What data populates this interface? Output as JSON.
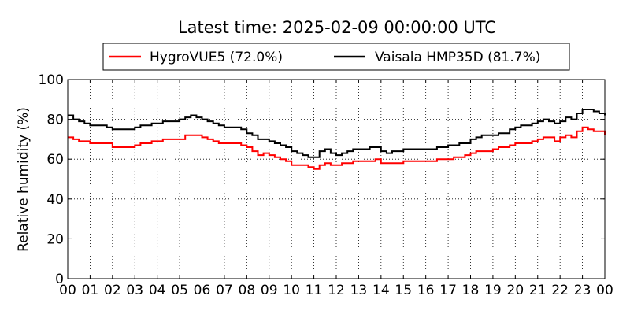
{
  "chart_data": {
    "type": "line",
    "title": "Latest time: 2025-02-09 00:00:00 UTC",
    "xlabel": "",
    "ylabel": "Relative humidity (%)",
    "xlim": [
      0,
      24
    ],
    "ylim": [
      0,
      100
    ],
    "x_ticks": [
      "00",
      "01",
      "02",
      "03",
      "04",
      "05",
      "06",
      "07",
      "08",
      "09",
      "10",
      "11",
      "12",
      "13",
      "14",
      "15",
      "16",
      "17",
      "18",
      "19",
      "20",
      "21",
      "22",
      "23",
      "00"
    ],
    "y_ticks": [
      0,
      20,
      40,
      60,
      80,
      100
    ],
    "grid": true,
    "legend_position": "top-center",
    "series": [
      {
        "name": "HygroVUE5 (72.0%)",
        "color": "#ff0000",
        "points": [
          [
            0.0,
            71
          ],
          [
            0.25,
            70
          ],
          [
            0.5,
            69
          ],
          [
            0.75,
            69
          ],
          [
            1.0,
            68
          ],
          [
            1.25,
            68
          ],
          [
            1.5,
            68
          ],
          [
            1.75,
            68
          ],
          [
            2.0,
            66
          ],
          [
            2.25,
            66
          ],
          [
            2.5,
            66
          ],
          [
            2.75,
            66
          ],
          [
            3.0,
            67
          ],
          [
            3.25,
            68
          ],
          [
            3.5,
            68
          ],
          [
            3.75,
            69
          ],
          [
            4.0,
            69
          ],
          [
            4.25,
            70
          ],
          [
            4.5,
            70
          ],
          [
            4.75,
            70
          ],
          [
            5.0,
            70
          ],
          [
            5.25,
            72
          ],
          [
            5.5,
            72
          ],
          [
            5.75,
            72
          ],
          [
            6.0,
            71
          ],
          [
            6.25,
            70
          ],
          [
            6.5,
            69
          ],
          [
            6.75,
            68
          ],
          [
            7.0,
            68
          ],
          [
            7.25,
            68
          ],
          [
            7.5,
            68
          ],
          [
            7.75,
            67
          ],
          [
            8.0,
            66
          ],
          [
            8.25,
            64
          ],
          [
            8.5,
            62
          ],
          [
            8.75,
            63
          ],
          [
            9.0,
            62
          ],
          [
            9.25,
            61
          ],
          [
            9.5,
            60
          ],
          [
            9.75,
            59
          ],
          [
            10.0,
            57
          ],
          [
            10.25,
            57
          ],
          [
            10.5,
            57
          ],
          [
            10.75,
            56
          ],
          [
            11.0,
            55
          ],
          [
            11.25,
            57
          ],
          [
            11.5,
            58
          ],
          [
            11.75,
            57
          ],
          [
            12.0,
            57
          ],
          [
            12.25,
            58
          ],
          [
            12.5,
            58
          ],
          [
            12.75,
            59
          ],
          [
            13.0,
            59
          ],
          [
            13.25,
            59
          ],
          [
            13.5,
            59
          ],
          [
            13.75,
            60
          ],
          [
            14.0,
            58
          ],
          [
            14.25,
            58
          ],
          [
            14.5,
            58
          ],
          [
            14.75,
            58
          ],
          [
            15.0,
            59
          ],
          [
            15.25,
            59
          ],
          [
            15.5,
            59
          ],
          [
            15.75,
            59
          ],
          [
            16.0,
            59
          ],
          [
            16.25,
            59
          ],
          [
            16.5,
            60
          ],
          [
            16.75,
            60
          ],
          [
            17.0,
            60
          ],
          [
            17.25,
            61
          ],
          [
            17.5,
            61
          ],
          [
            17.75,
            62
          ],
          [
            18.0,
            63
          ],
          [
            18.25,
            64
          ],
          [
            18.5,
            64
          ],
          [
            18.75,
            64
          ],
          [
            19.0,
            65
          ],
          [
            19.25,
            66
          ],
          [
            19.5,
            66
          ],
          [
            19.75,
            67
          ],
          [
            20.0,
            68
          ],
          [
            20.25,
            68
          ],
          [
            20.5,
            68
          ],
          [
            20.75,
            69
          ],
          [
            21.0,
            70
          ],
          [
            21.25,
            71
          ],
          [
            21.5,
            71
          ],
          [
            21.75,
            69
          ],
          [
            22.0,
            71
          ],
          [
            22.25,
            72
          ],
          [
            22.5,
            71
          ],
          [
            22.75,
            74
          ],
          [
            23.0,
            76
          ],
          [
            23.25,
            75
          ],
          [
            23.5,
            74
          ],
          [
            23.75,
            74
          ],
          [
            24.0,
            72
          ]
        ]
      },
      {
        "name": "Vaisala HMP35D (81.7%)",
        "color": "#000000",
        "points": [
          [
            0.0,
            82
          ],
          [
            0.25,
            80
          ],
          [
            0.5,
            79
          ],
          [
            0.75,
            78
          ],
          [
            1.0,
            77
          ],
          [
            1.25,
            77
          ],
          [
            1.5,
            77
          ],
          [
            1.75,
            76
          ],
          [
            2.0,
            75
          ],
          [
            2.25,
            75
          ],
          [
            2.5,
            75
          ],
          [
            2.75,
            75
          ],
          [
            3.0,
            76
          ],
          [
            3.25,
            77
          ],
          [
            3.5,
            77
          ],
          [
            3.75,
            78
          ],
          [
            4.0,
            78
          ],
          [
            4.25,
            79
          ],
          [
            4.5,
            79
          ],
          [
            4.75,
            79
          ],
          [
            5.0,
            80
          ],
          [
            5.25,
            81
          ],
          [
            5.5,
            82
          ],
          [
            5.75,
            81
          ],
          [
            6.0,
            80
          ],
          [
            6.25,
            79
          ],
          [
            6.5,
            78
          ],
          [
            6.75,
            77
          ],
          [
            7.0,
            76
          ],
          [
            7.25,
            76
          ],
          [
            7.5,
            76
          ],
          [
            7.75,
            75
          ],
          [
            8.0,
            73
          ],
          [
            8.25,
            72
          ],
          [
            8.5,
            70
          ],
          [
            8.75,
            70
          ],
          [
            9.0,
            69
          ],
          [
            9.25,
            68
          ],
          [
            9.5,
            67
          ],
          [
            9.75,
            66
          ],
          [
            10.0,
            64
          ],
          [
            10.25,
            63
          ],
          [
            10.5,
            62
          ],
          [
            10.75,
            61
          ],
          [
            11.0,
            61
          ],
          [
            11.25,
            64
          ],
          [
            11.5,
            65
          ],
          [
            11.75,
            63
          ],
          [
            12.0,
            62
          ],
          [
            12.25,
            63
          ],
          [
            12.5,
            64
          ],
          [
            12.75,
            65
          ],
          [
            13.0,
            65
          ],
          [
            13.25,
            65
          ],
          [
            13.5,
            66
          ],
          [
            13.75,
            66
          ],
          [
            14.0,
            64
          ],
          [
            14.25,
            63
          ],
          [
            14.5,
            64
          ],
          [
            14.75,
            64
          ],
          [
            15.0,
            65
          ],
          [
            15.25,
            65
          ],
          [
            15.5,
            65
          ],
          [
            15.75,
            65
          ],
          [
            16.0,
            65
          ],
          [
            16.25,
            65
          ],
          [
            16.5,
            66
          ],
          [
            16.75,
            66
          ],
          [
            17.0,
            67
          ],
          [
            17.25,
            67
          ],
          [
            17.5,
            68
          ],
          [
            17.75,
            68
          ],
          [
            18.0,
            70
          ],
          [
            18.25,
            71
          ],
          [
            18.5,
            72
          ],
          [
            18.75,
            72
          ],
          [
            19.0,
            72
          ],
          [
            19.25,
            73
          ],
          [
            19.5,
            73
          ],
          [
            19.75,
            75
          ],
          [
            20.0,
            76
          ],
          [
            20.25,
            77
          ],
          [
            20.5,
            77
          ],
          [
            20.75,
            78
          ],
          [
            21.0,
            79
          ],
          [
            21.25,
            80
          ],
          [
            21.5,
            79
          ],
          [
            21.75,
            78
          ],
          [
            22.0,
            79
          ],
          [
            22.25,
            81
          ],
          [
            22.5,
            80
          ],
          [
            22.75,
            83
          ],
          [
            23.0,
            85
          ],
          [
            23.25,
            85
          ],
          [
            23.5,
            84
          ],
          [
            23.75,
            83
          ],
          [
            24.0,
            82
          ]
        ]
      }
    ]
  }
}
